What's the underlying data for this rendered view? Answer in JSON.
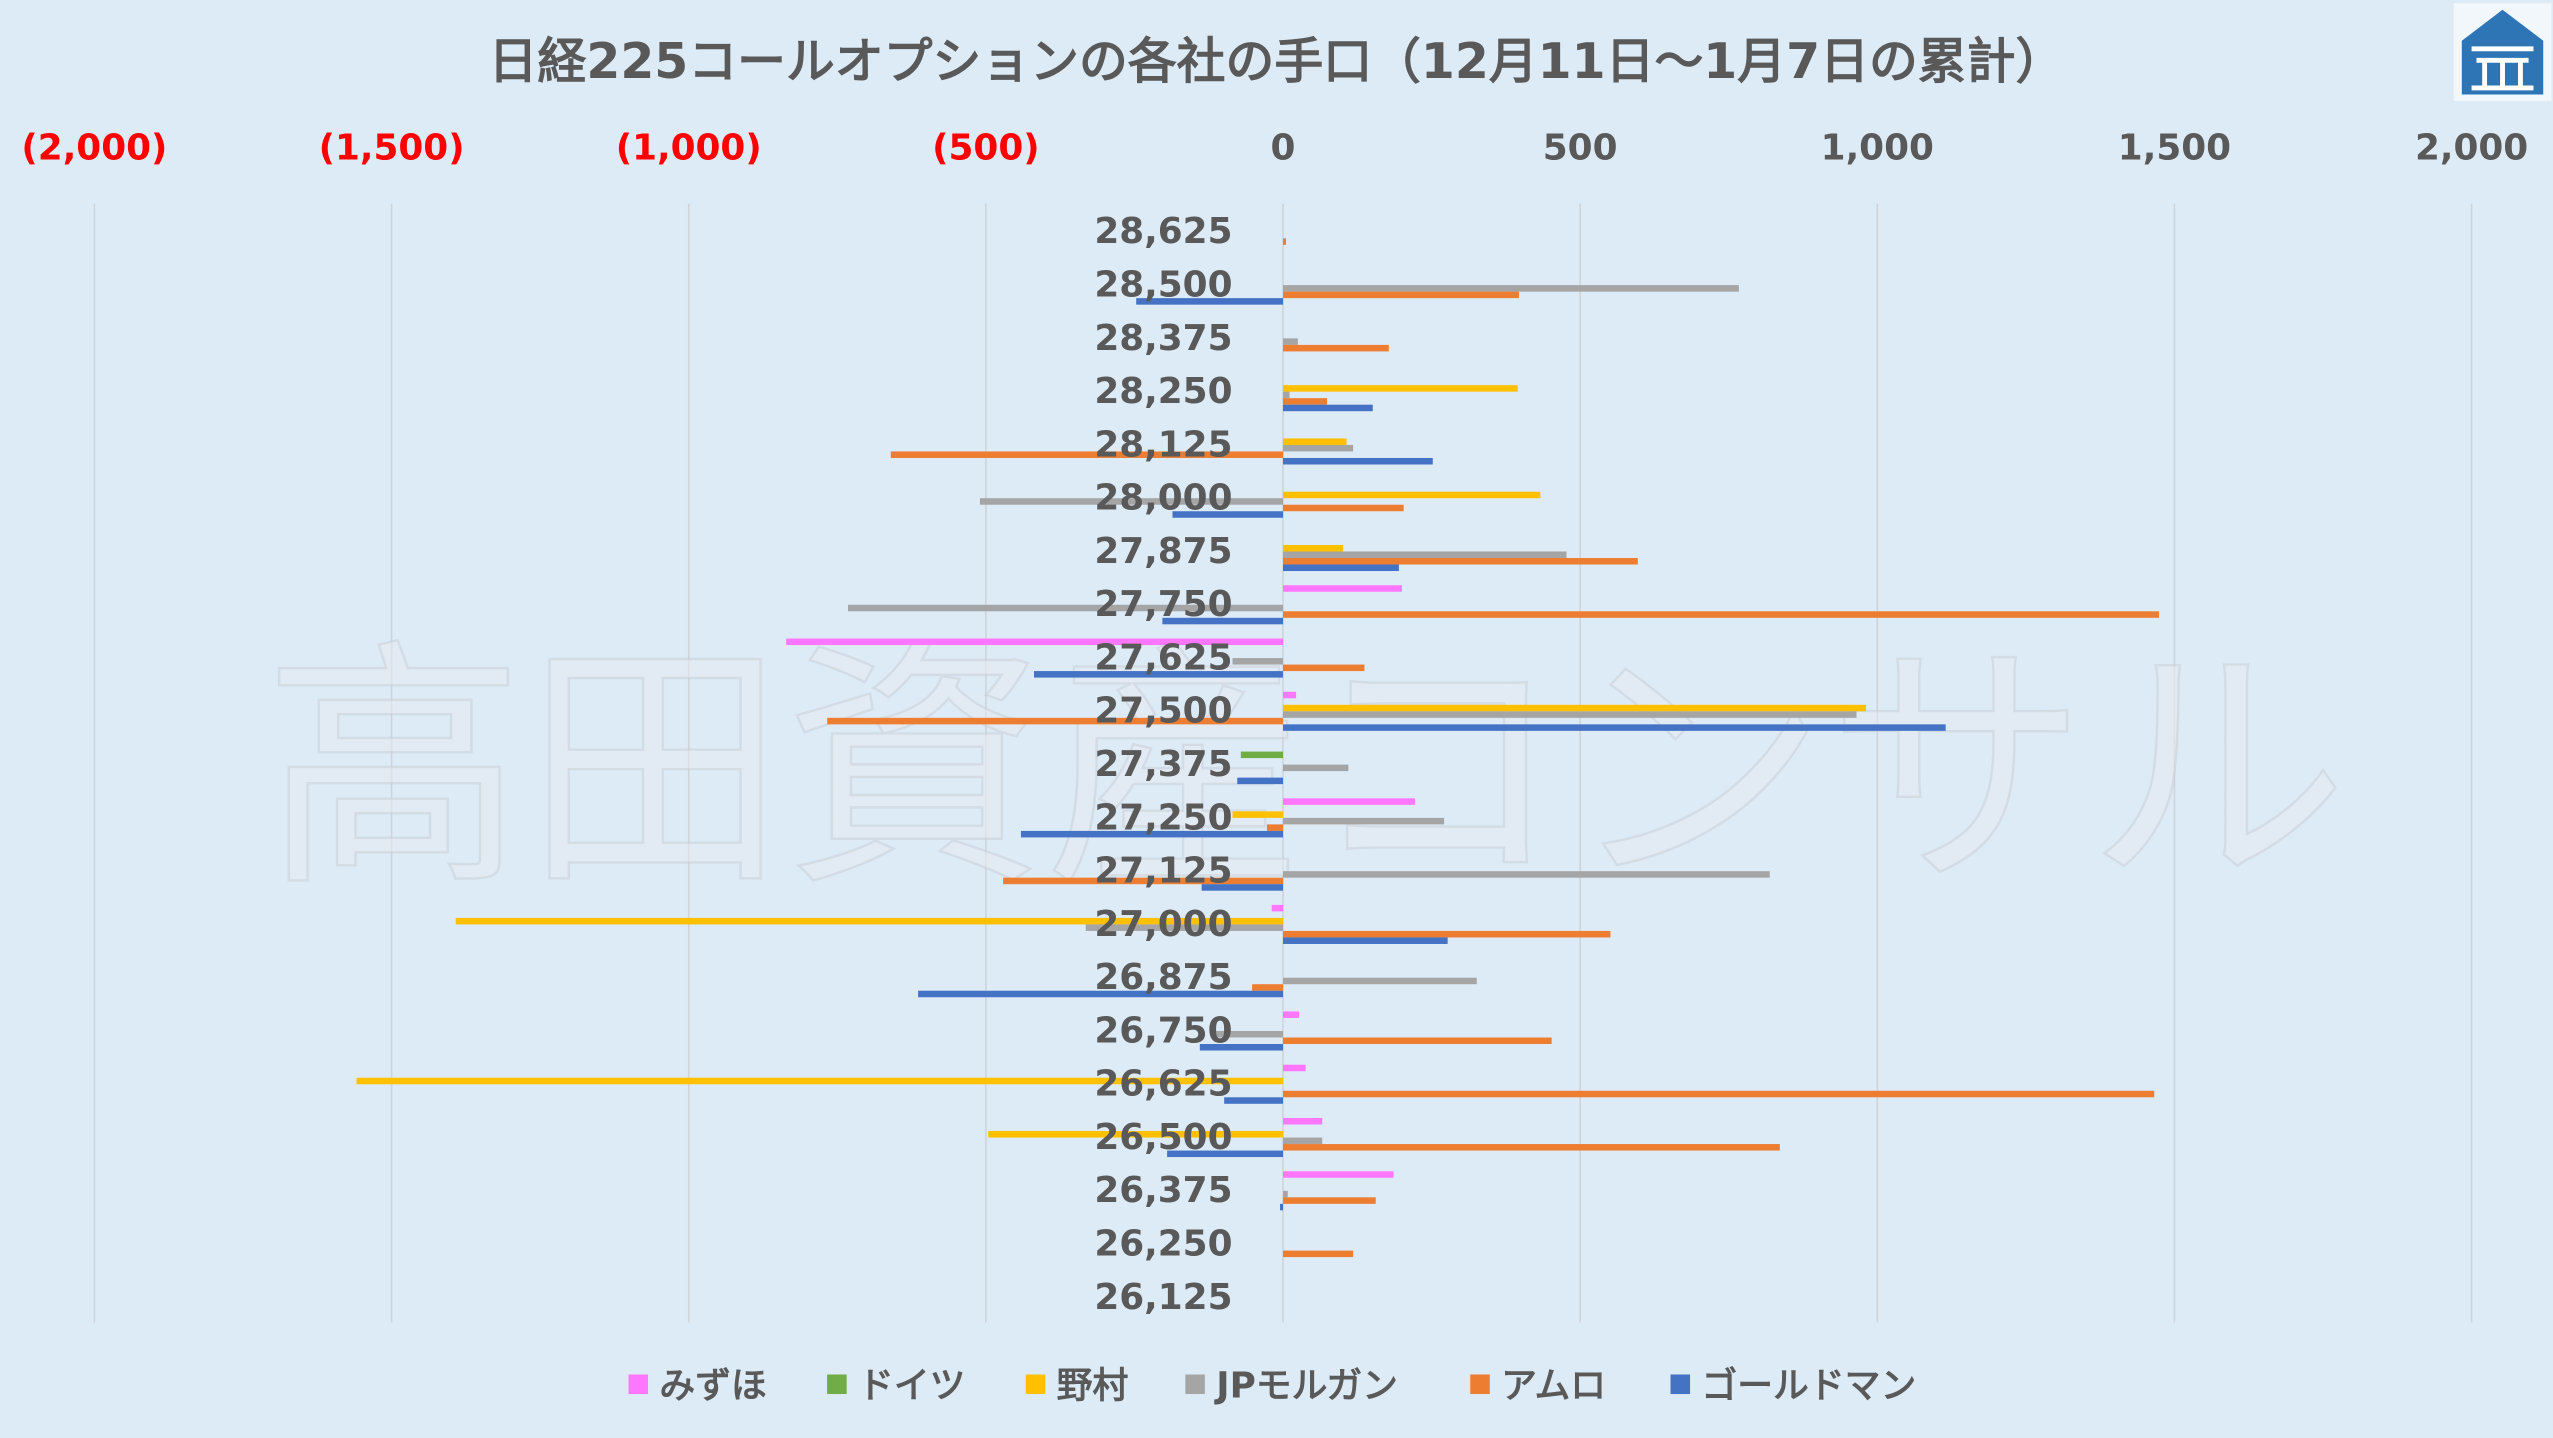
{
  "colors": {
    "background": "#DDEBF7",
    "grid": "#D0D4D9",
    "text": "#595959",
    "tick_negative": "#FF0000",
    "tick_positive": "#595959",
    "logo_blue": "#2E75B6"
  },
  "watermark": "高田資産コンサル",
  "logo": {
    "icon": "house-logo-icon"
  },
  "chart_data": {
    "type": "bar",
    "orientation": "horizontal",
    "title": "日経225コールオプションの各社の手口（12月11日～1月7日の累計）",
    "categories": [
      "28,625",
      "28,500",
      "28,375",
      "28,250",
      "28,125",
      "28,000",
      "27,875",
      "27,750",
      "27,625",
      "27,500",
      "27,375",
      "27,250",
      "27,125",
      "27,000",
      "26,875",
      "26,750",
      "26,625",
      "26,500",
      "26,375",
      "26,250",
      "26,125"
    ],
    "xlim": [
      -2000,
      2000
    ],
    "x_ticks": [
      -2000,
      -1500,
      -1000,
      -500,
      0,
      500,
      1000,
      1500,
      2000
    ],
    "x_tick_labels": [
      "(2,000)",
      "(1,500)",
      "(1,000)",
      "(500)",
      "0",
      "500",
      "1,000",
      "1,500",
      "2,000"
    ],
    "x_axis_position": "top",
    "grid": true,
    "legend_position": "bottom",
    "series": [
      {
        "name": "みずほ",
        "color": "#FF77FF",
        "values": [
          0,
          0,
          0,
          0,
          0,
          0,
          0,
          200,
          -836,
          22,
          0,
          222,
          0,
          -19,
          0,
          27,
          38,
          66,
          186,
          0,
          0
        ]
      },
      {
        "name": "ドイツ",
        "color": "#70AD47",
        "values": [
          0,
          0,
          0,
          0,
          0,
          0,
          0,
          0,
          0,
          0,
          -71,
          0,
          0,
          0,
          0,
          0,
          0,
          0,
          0,
          0,
          0
        ]
      },
      {
        "name": "野村",
        "color": "#FFC000",
        "values": [
          0,
          0,
          0,
          395,
          107,
          433,
          101,
          0,
          0,
          981,
          0,
          -85,
          0,
          -1392,
          0,
          0,
          -1559,
          -496,
          0,
          0,
          0
        ]
      },
      {
        "name": "JPモルガン",
        "color": "#A5A5A5",
        "values": [
          0,
          767,
          25,
          11,
          118,
          -510,
          477,
          -732,
          -85,
          965,
          110,
          271,
          819,
          -332,
          326,
          -118,
          0,
          66,
          8,
          0,
          0
        ]
      },
      {
        "name": "アムロ",
        "color": "#ED7D31",
        "values": [
          5,
          397,
          178,
          74,
          -660,
          203,
          597,
          1474,
          137,
          -767,
          0,
          -27,
          -471,
          551,
          -52,
          452,
          1466,
          836,
          156,
          118,
          0
        ]
      },
      {
        "name": "ゴールドマン",
        "color": "#4472C4",
        "values": [
          0,
          -247,
          0,
          151,
          252,
          -186,
          195,
          -203,
          -419,
          1115,
          -77,
          -441,
          -137,
          277,
          -614,
          -140,
          -99,
          -195,
          -5,
          0,
          0
        ]
      }
    ]
  }
}
